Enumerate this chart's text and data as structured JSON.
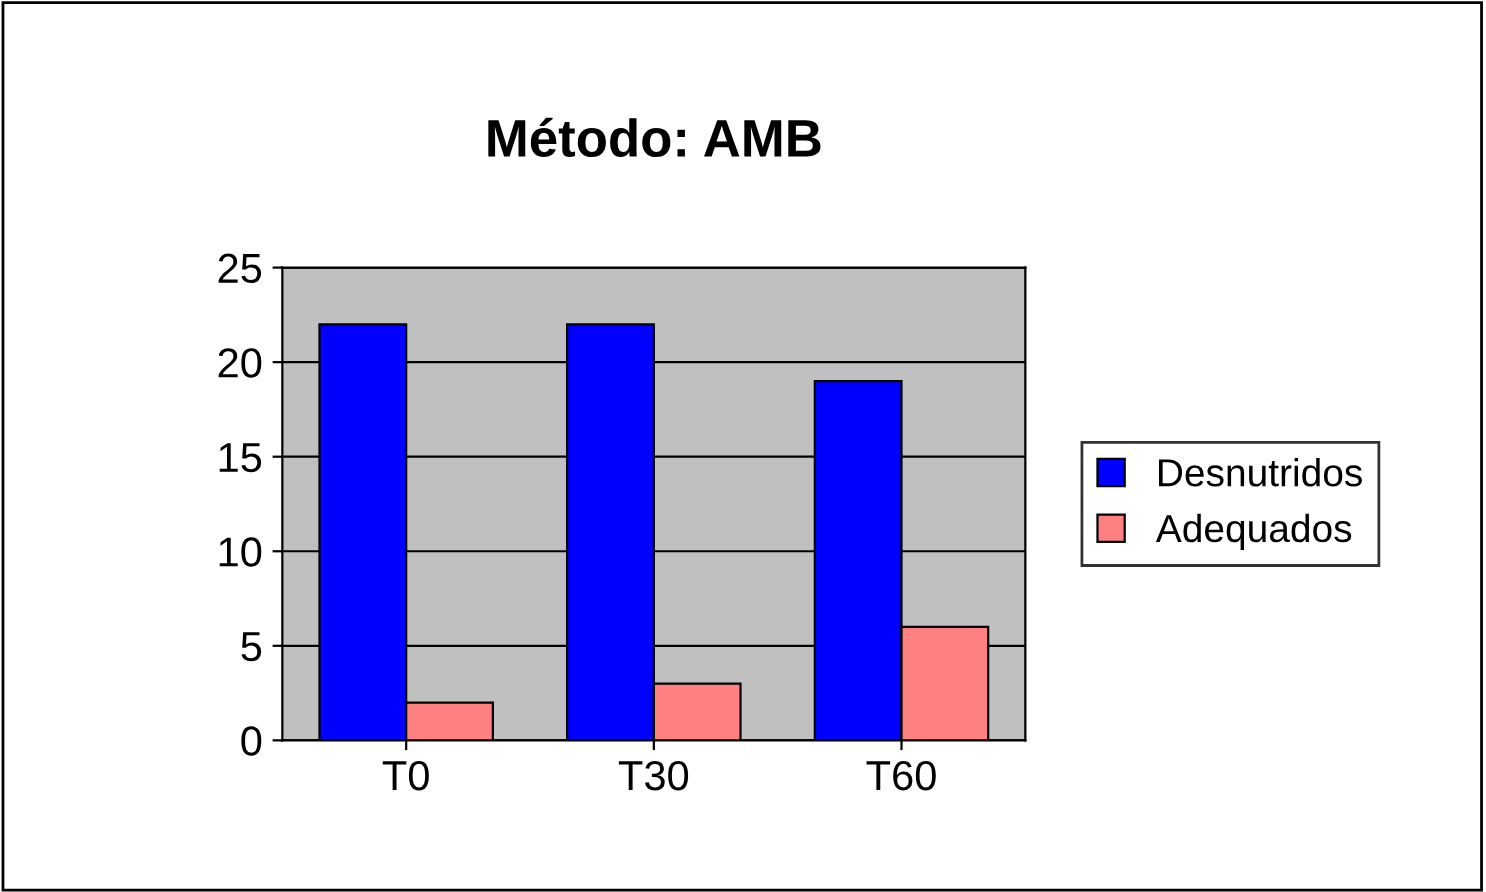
{
  "chart_data": {
    "type": "bar",
    "title": "Método: AMB",
    "categories": [
      "T0",
      "T30",
      "T60"
    ],
    "series": [
      {
        "name": "Desnutridos",
        "color": "#0000ff",
        "values": [
          22,
          22,
          19
        ]
      },
      {
        "name": "Adequados",
        "color": "#ff8080",
        "values": [
          2,
          3,
          6
        ]
      }
    ],
    "ylim": [
      0,
      25
    ],
    "yticks": [
      0,
      5,
      10,
      15,
      20,
      25
    ],
    "grid": "y",
    "legend": "right"
  }
}
